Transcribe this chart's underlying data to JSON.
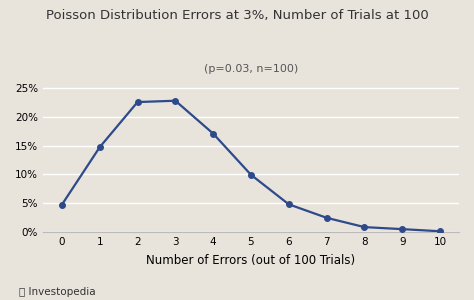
{
  "title": "Poisson Distribution Errors at 3%, Number of Trials at 100",
  "subtitle": "(p=0.03, n=100)",
  "xlabel": "Number of Errors (out of 100 Trials)",
  "ylabel": "",
  "x_values": [
    0,
    1,
    2,
    3,
    4,
    5,
    6,
    7,
    8,
    9,
    10
  ],
  "y_values": [
    0.0476,
    0.1471,
    0.2252,
    0.2275,
    0.1706,
    0.0993,
    0.0482,
    0.0249,
    0.0088,
    0.0053,
    0.0016
  ],
  "line_color": "#2e4a8a",
  "marker": "o",
  "marker_size": 4,
  "line_width": 1.6,
  "background_color": "#e8e4dc",
  "plot_bg_color": "#e8e4dc",
  "grid_color": "#ffffff",
  "ylim": [
    0,
    0.27
  ],
  "yticks": [
    0,
    0.05,
    0.1,
    0.15,
    0.2,
    0.25
  ],
  "ytick_labels": [
    "0%",
    "5%",
    "10%",
    "15%",
    "20%",
    "25%"
  ],
  "xticks": [
    0,
    1,
    2,
    3,
    4,
    5,
    6,
    7,
    8,
    9,
    10
  ],
  "title_fontsize": 9.5,
  "subtitle_fontsize": 8,
  "axis_label_fontsize": 8.5,
  "tick_fontsize": 7.5,
  "logo_text": "Ⓜ Investopedia"
}
